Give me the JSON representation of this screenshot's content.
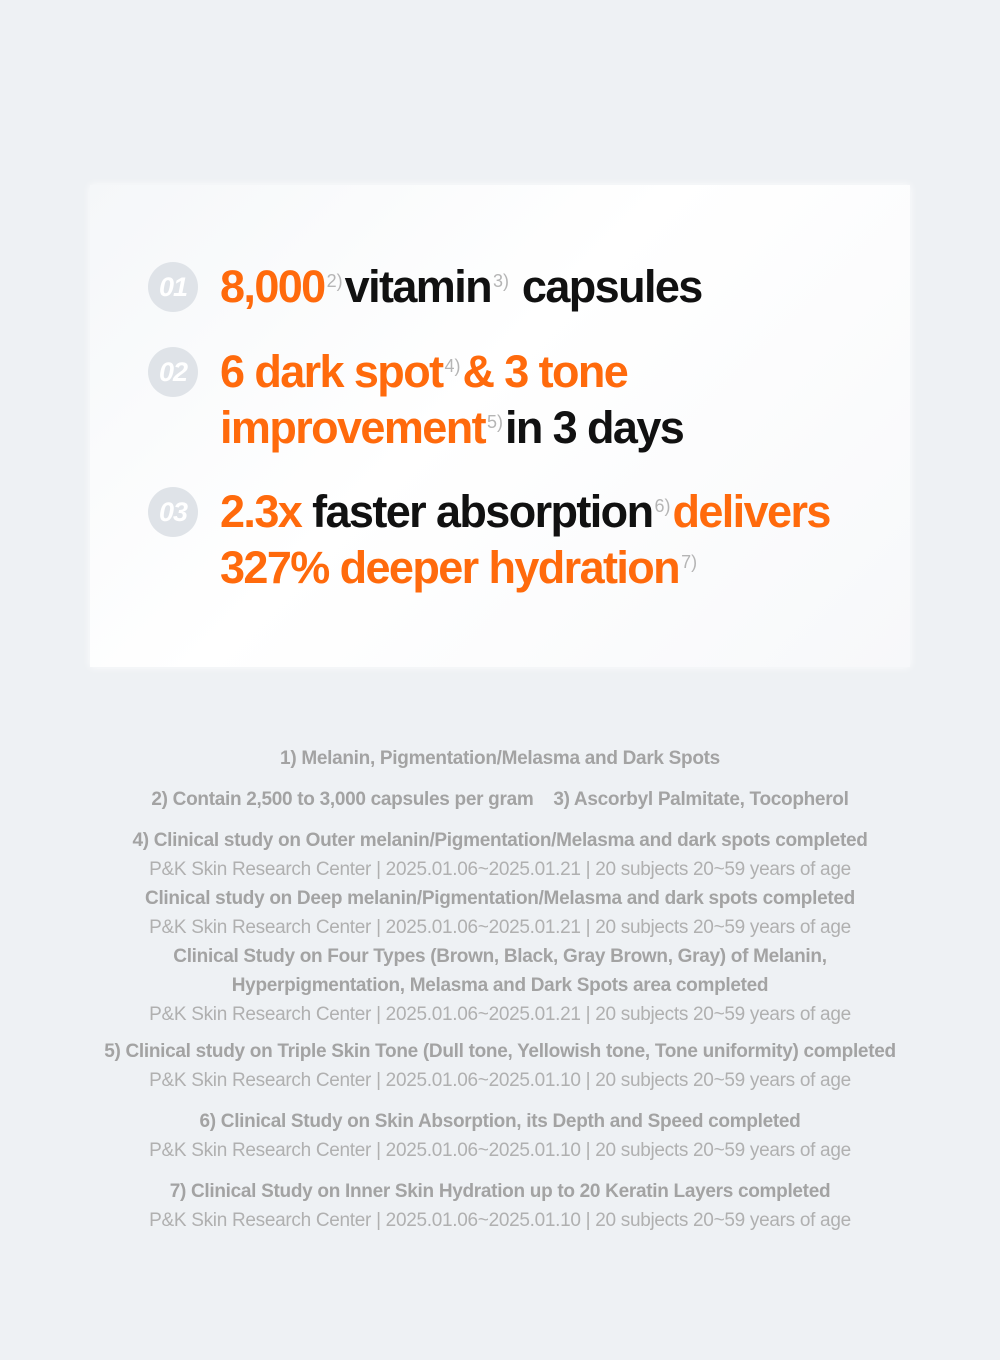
{
  "colors": {
    "accent": "#ff6a0c",
    "text": "#111111",
    "note": "#a3a3a3",
    "badge": "#dfe3e8"
  },
  "items": [
    {
      "num": "01",
      "parts": [
        "8,000",
        "2)",
        "vitamin",
        "3)",
        "capsules"
      ]
    },
    {
      "num": "02",
      "parts": [
        "6 dark spot",
        "4)",
        "& 3 tone",
        "improvement",
        "5)",
        "in 3 days"
      ]
    },
    {
      "num": "03",
      "parts": [
        "2.3x",
        "faster absorption",
        "6)",
        "delivers",
        "327% deeper hydration",
        "7)"
      ]
    }
  ],
  "notes": {
    "n1": "1) Melanin, Pigmentation/Melasma and Dark Spots",
    "n2": "2) Contain 2,500 to 3,000 capsules per gram",
    "n3": "3) Ascorbyl Palmitate, Tocopherol",
    "n4a": "4) Clinical study on Outer melanin/Pigmentation/Melasma and dark spots completed",
    "n4a_src": "P&K Skin Research Center | 2025.01.06~2025.01.21 | 20 subjects 20~59 years of age",
    "n4b": "Clinical study on Deep melanin/Pigmentation/Melasma and dark spots completed",
    "n4b_src": "P&K Skin Research Center | 2025.01.06~2025.01.21 | 20 subjects 20~59 years of age",
    "n4c1": "Clinical Study on Four Types (Brown, Black, Gray Brown, Gray) of Melanin,",
    "n4c2": "Hyperpigmentation, Melasma and Dark Spots area completed",
    "n4c_src": "P&K Skin Research Center | 2025.01.06~2025.01.21 | 20 subjects 20~59 years of age",
    "n5": "5) Clinical study on Triple Skin Tone (Dull tone, Yellowish tone, Tone uniformity) completed",
    "n5_src": "P&K Skin Research Center | 2025.01.06~2025.01.10 | 20 subjects 20~59 years of age",
    "n6": "6) Clinical Study on Skin Absorption, its Depth and Speed completed",
    "n6_src": "P&K Skin Research Center | 2025.01.06~2025.01.10 | 20 subjects 20~59 years of age",
    "n7": "7) Clinical Study on Inner Skin Hydration up to 20 Keratin Layers completed",
    "n7_src": "P&K Skin Research Center | 2025.01.06~2025.01.10 | 20 subjects 20~59 years of age"
  }
}
